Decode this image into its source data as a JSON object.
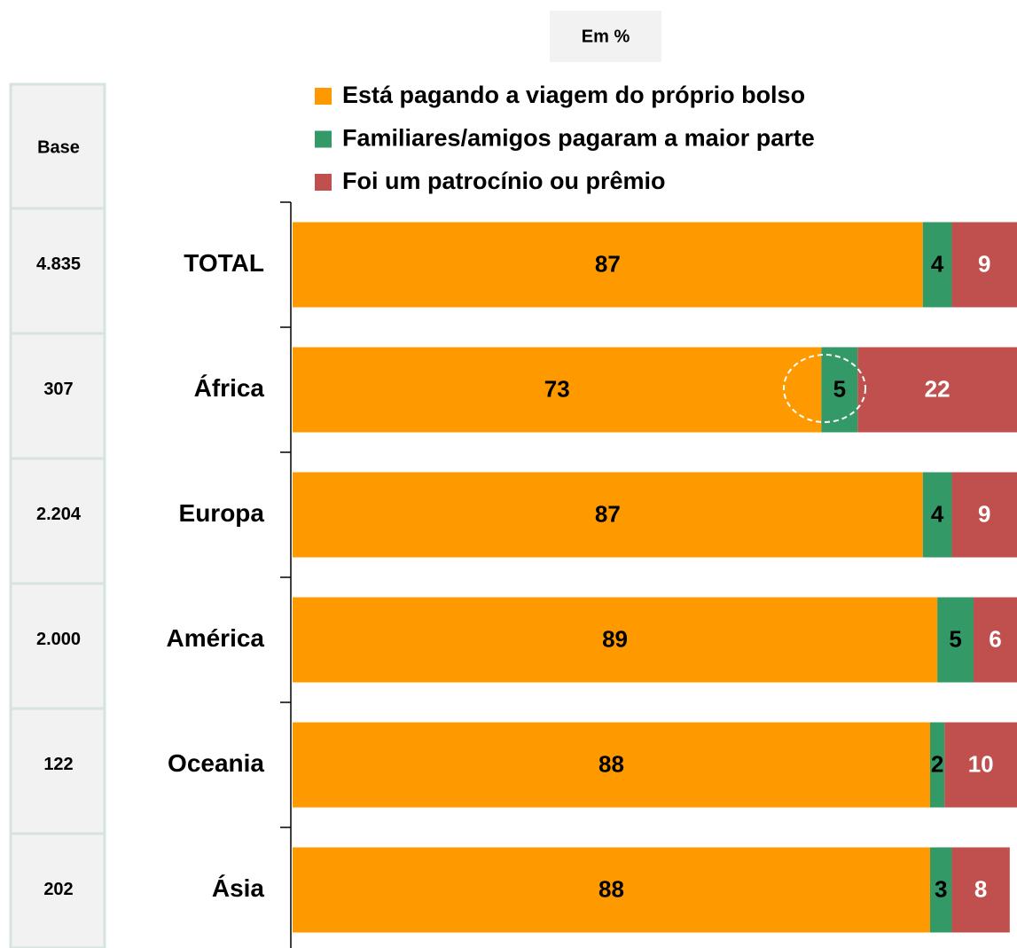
{
  "chart_data": {
    "type": "stacked-bar-horizontal",
    "subtitle": "Em %",
    "base_header": "Base",
    "base": [
      "4.835",
      "307",
      "2.204",
      "2.000",
      "122",
      "202"
    ],
    "categories": [
      "TOTAL",
      "África",
      "Europa",
      "América",
      "Oceania",
      "Ásia"
    ],
    "series": [
      {
        "name": "Está pagando a viagem do próprio bolso",
        "color": "#ff9900",
        "label_color": "#000000",
        "values": [
          87,
          73,
          87,
          89,
          88,
          88
        ]
      },
      {
        "name": "Familiares/amigos pagaram a maior parte",
        "color": "#339966",
        "label_color": "#000000",
        "values": [
          4,
          5,
          4,
          5,
          2,
          3
        ]
      },
      {
        "name": "Foi um patrocínio ou prêmio",
        "color": "#c0504d",
        "label_color": "#ffffff",
        "values": [
          9,
          22,
          9,
          6,
          10,
          8
        ]
      }
    ],
    "xlim": [
      0,
      100
    ]
  }
}
